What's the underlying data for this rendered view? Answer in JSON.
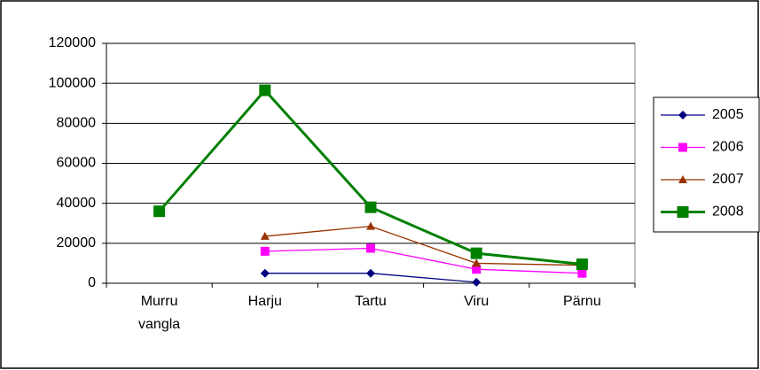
{
  "chart_data": {
    "type": "line",
    "categories": [
      "Murru vangla",
      "Harju",
      "Tartu",
      "Viru",
      "Pärnu"
    ],
    "series": [
      {
        "name": "2005",
        "color": "#000080",
        "marker": "diamond",
        "values": [
          null,
          5000,
          5000,
          500,
          null
        ]
      },
      {
        "name": "2006",
        "color": "#ff00ff",
        "marker": "square",
        "values": [
          null,
          16000,
          17500,
          7000,
          5000
        ]
      },
      {
        "name": "2007",
        "color": "#993300",
        "marker": "triangle",
        "values": [
          null,
          23500,
          28500,
          10000,
          9000
        ]
      },
      {
        "name": "2008",
        "color": "#008000",
        "marker": "square",
        "values": [
          36000,
          96500,
          38000,
          15000,
          9500
        ]
      }
    ],
    "ylim": [
      0,
      120000
    ],
    "yticks": [
      0,
      20000,
      40000,
      60000,
      80000,
      100000,
      120000
    ],
    "grid": true,
    "legend": "right"
  }
}
